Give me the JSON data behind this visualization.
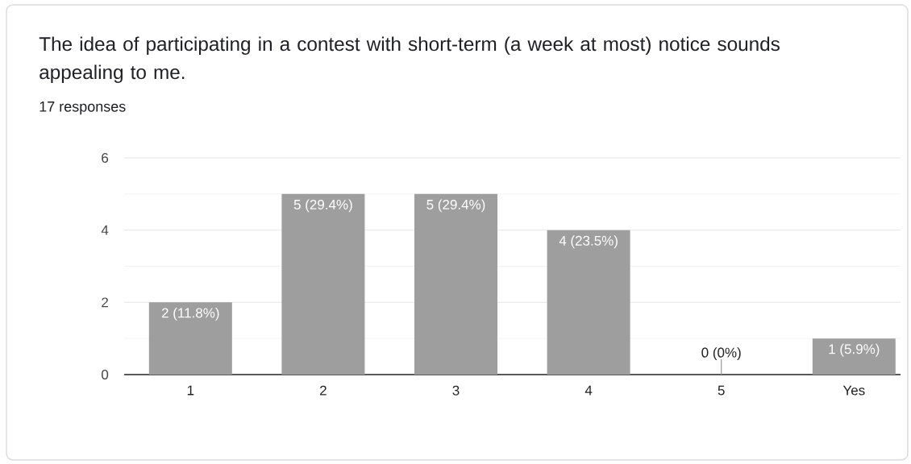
{
  "chart_data": {
    "type": "bar",
    "title": "The idea of participating in a contest with short-term (a week at most) notice sounds appealing to me.",
    "subtitle": "17 responses",
    "categories": [
      "1",
      "2",
      "3",
      "4",
      "5",
      "Yes"
    ],
    "values": [
      2,
      5,
      5,
      4,
      0,
      1
    ],
    "value_labels": [
      "2 (11.8%)",
      "5 (29.4%)",
      "5 (29.4%)",
      "4 (23.5%)",
      "0 (0%)",
      "1 (5.9%)"
    ],
    "color": "#9e9e9e",
    "ylim": [
      0,
      6
    ],
    "yticks": [
      0,
      {
        "value": 1,
        "label": null
      },
      2,
      {
        "value": 3,
        "label": null
      },
      4,
      {
        "value": 5,
        "label": null
      },
      6
    ],
    "grid": "y"
  }
}
